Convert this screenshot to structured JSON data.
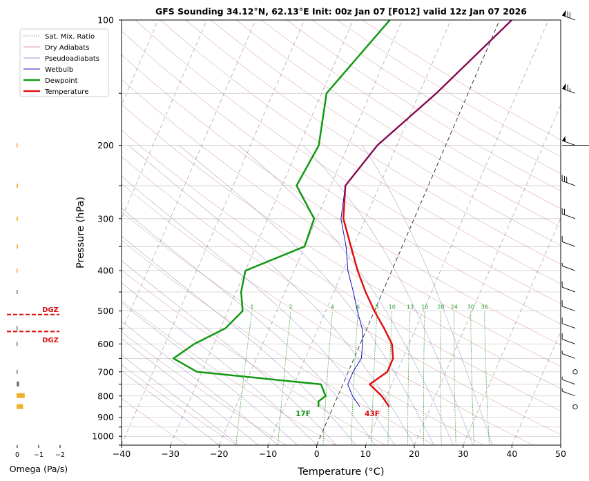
{
  "chart_data": {
    "type": "line",
    "title": "GFS Sounding 34.12°N, 62.13°E Init: 00z Jan 07 [F012] valid 12z Jan 07 2026",
    "xlabel": "Temperature (°C)",
    "ylabel": "Pressure (hPa)",
    "xlim": [
      -40,
      50
    ],
    "ylim": [
      1050,
      100
    ],
    "y_scale": "log",
    "x_ticks": [
      "−40",
      "−30",
      "−20",
      "−10",
      "0",
      "10",
      "20",
      "30",
      "40",
      "50"
    ],
    "y_ticks": [
      "100",
      "200",
      "300",
      "400",
      "500",
      "600",
      "700",
      "800",
      "900",
      "1000"
    ],
    "grid": true,
    "legend_position": "upper-left",
    "legend": [
      "Sat. Mix. Ratio",
      "Dry Adiabats",
      "Pseudoadiabats",
      "Wetbulb",
      "Dewpoint",
      "Temperature"
    ],
    "series": [
      {
        "name": "Temperature",
        "color": "#dd1111",
        "points": [
          [
            11.5,
            850
          ],
          [
            9,
            800
          ],
          [
            5.5,
            750
          ],
          [
            8,
            700
          ],
          [
            8,
            650
          ],
          [
            6.5,
            600
          ],
          [
            3.5,
            550
          ],
          [
            0,
            500
          ],
          [
            -3.5,
            450
          ],
          [
            -7,
            400
          ],
          [
            -10.5,
            350
          ],
          [
            -14.5,
            300
          ],
          [
            -17,
            250
          ],
          [
            -14,
            200
          ],
          [
            -6.5,
            150
          ],
          [
            2.5,
            100
          ]
        ]
      },
      {
        "name": "Dewpoint",
        "color": "#119911",
        "points": [
          [
            -3,
            850
          ],
          [
            -3.5,
            825
          ],
          [
            -2.5,
            800
          ],
          [
            -4.5,
            750
          ],
          [
            -31,
            700
          ],
          [
            -37,
            650
          ],
          [
            -34,
            600
          ],
          [
            -29,
            550
          ],
          [
            -27,
            500
          ],
          [
            -29,
            450
          ],
          [
            -30,
            400
          ],
          [
            -20,
            350
          ],
          [
            -20.5,
            300
          ],
          [
            -27,
            250
          ],
          [
            -26,
            200
          ],
          [
            -29,
            150
          ],
          [
            -22.5,
            100
          ]
        ]
      },
      {
        "name": "Wetbulb",
        "color": "#1111bb",
        "points": [
          [
            5.5,
            850
          ],
          [
            3,
            800
          ],
          [
            1,
            750
          ],
          [
            1,
            700
          ],
          [
            1.5,
            650
          ],
          [
            0.5,
            600
          ],
          [
            -1,
            550
          ],
          [
            -3.5,
            500
          ],
          [
            -6,
            450
          ],
          [
            -9,
            400
          ],
          [
            -11.5,
            350
          ],
          [
            -15,
            300
          ],
          [
            -17,
            250
          ],
          [
            -14,
            200
          ],
          [
            -6.5,
            150
          ],
          [
            2.5,
            100
          ]
        ]
      }
    ],
    "annotations": [
      "17F",
      "43F",
      "DGZ",
      "DGZ"
    ],
    "mixing_ratio_labels": [
      "1",
      "2",
      "4",
      "6",
      "8",
      "10",
      "13",
      "16",
      "20",
      "24",
      "30",
      "36"
    ],
    "omega": {
      "xlabel": "Omega (Pa/s)",
      "x_ticks": [
        "0",
        "−1",
        "−2"
      ],
      "points": [
        [
          200,
          0.05
        ],
        [
          250,
          0.06
        ],
        [
          300,
          0.06
        ],
        [
          350,
          0.06
        ],
        [
          400,
          0.05
        ],
        [
          450,
          0.05
        ],
        [
          550,
          0.05
        ],
        [
          600,
          0.05
        ],
        [
          700,
          0.05
        ],
        [
          750,
          0.12
        ],
        [
          800,
          0.38
        ],
        [
          850,
          0.3
        ]
      ]
    },
    "dgz_pressures": [
      510,
      560
    ],
    "wind_barbs": [
      {
        "p": 100,
        "speed": 80
      },
      {
        "p": 150,
        "speed": 75
      },
      {
        "p": 200,
        "speed": 55
      },
      {
        "p": 250,
        "speed": 30
      },
      {
        "p": 300,
        "speed": 20
      },
      {
        "p": 350,
        "speed": 10
      },
      {
        "p": 400,
        "speed": 5
      },
      {
        "p": 450,
        "speed": 10
      },
      {
        "p": 500,
        "speed": 10
      },
      {
        "p": 550,
        "speed": 10
      },
      {
        "p": 600,
        "speed": 10
      },
      {
        "p": 650,
        "speed": 5
      },
      {
        "p": 700,
        "speed": 0
      },
      {
        "p": 750,
        "speed": 5
      },
      {
        "p": 800,
        "speed": 5
      },
      {
        "p": 850,
        "speed": 0
      }
    ],
    "colors": {
      "temperature": "#dd1111",
      "dewpoint": "#119911",
      "wetbulb": "#1111bb",
      "dry": "#cc7777",
      "moist": "#7777bb",
      "mixing": "#2a9a2a",
      "omega": "#f0b030",
      "dgz": "#dd1111"
    }
  }
}
